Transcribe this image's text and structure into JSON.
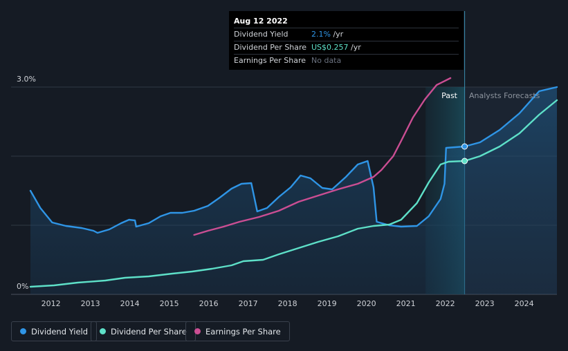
{
  "chart_data": {
    "type": "line",
    "title": "",
    "ylabel": "",
    "xlabel": "",
    "ylim": [
      0,
      3.0
    ],
    "y_tick_labels": [
      "3.0%",
      "0%"
    ],
    "x_tick_labels": [
      "2012",
      "2013",
      "2014",
      "2015",
      "2016",
      "2017",
      "2018",
      "2019",
      "2020",
      "2021",
      "2022",
      "2023",
      "2024"
    ],
    "regions": {
      "past_label": "Past",
      "forecast_label": "Analysts Forecasts",
      "divider_date": 2022.61,
      "shade_start": 2021.62
    },
    "series": [
      {
        "name": "Dividend Yield",
        "color": "#2f95e6",
        "fill": true,
        "points": [
          [
            2011.6,
            1.5
          ],
          [
            2011.85,
            1.25
          ],
          [
            2012.15,
            1.04
          ],
          [
            2012.5,
            0.99
          ],
          [
            2012.9,
            0.96
          ],
          [
            2013.2,
            0.92
          ],
          [
            2013.3,
            0.89
          ],
          [
            2013.6,
            0.94
          ],
          [
            2013.9,
            1.03
          ],
          [
            2014.1,
            1.08
          ],
          [
            2014.25,
            1.07
          ],
          [
            2014.28,
            0.98
          ],
          [
            2014.6,
            1.03
          ],
          [
            2014.9,
            1.13
          ],
          [
            2015.15,
            1.18
          ],
          [
            2015.45,
            1.18
          ],
          [
            2015.75,
            1.21
          ],
          [
            2016.1,
            1.28
          ],
          [
            2016.4,
            1.4
          ],
          [
            2016.7,
            1.53
          ],
          [
            2016.95,
            1.6
          ],
          [
            2017.2,
            1.61
          ],
          [
            2017.35,
            1.2
          ],
          [
            2017.6,
            1.25
          ],
          [
            2017.9,
            1.41
          ],
          [
            2018.2,
            1.55
          ],
          [
            2018.45,
            1.72
          ],
          [
            2018.7,
            1.68
          ],
          [
            2019.0,
            1.54
          ],
          [
            2019.25,
            1.52
          ],
          [
            2019.6,
            1.7
          ],
          [
            2019.9,
            1.88
          ],
          [
            2020.15,
            1.93
          ],
          [
            2020.3,
            1.55
          ],
          [
            2020.38,
            1.05
          ],
          [
            2020.7,
            1.0
          ],
          [
            2021.0,
            0.98
          ],
          [
            2021.4,
            0.99
          ],
          [
            2021.7,
            1.13
          ],
          [
            2022.0,
            1.38
          ],
          [
            2022.1,
            1.6
          ],
          [
            2022.14,
            2.12
          ],
          [
            2022.61,
            2.14
          ],
          [
            2023.0,
            2.2
          ],
          [
            2023.5,
            2.38
          ],
          [
            2024.0,
            2.62
          ],
          [
            2024.5,
            2.94
          ],
          [
            2024.95,
            3.0
          ]
        ]
      },
      {
        "name": "Dividend Per Share",
        "color": "#5ee0c8",
        "fill": false,
        "points": [
          [
            2011.6,
            0.11
          ],
          [
            2012.2,
            0.13
          ],
          [
            2012.8,
            0.17
          ],
          [
            2013.5,
            0.2
          ],
          [
            2014.0,
            0.24
          ],
          [
            2014.6,
            0.26
          ],
          [
            2015.2,
            0.3
          ],
          [
            2015.7,
            0.33
          ],
          [
            2016.2,
            0.37
          ],
          [
            2016.7,
            0.42
          ],
          [
            2017.0,
            0.48
          ],
          [
            2017.5,
            0.5
          ],
          [
            2017.9,
            0.58
          ],
          [
            2018.4,
            0.67
          ],
          [
            2018.9,
            0.76
          ],
          [
            2019.4,
            0.84
          ],
          [
            2019.9,
            0.95
          ],
          [
            2020.3,
            0.99
          ],
          [
            2020.7,
            1.01
          ],
          [
            2021.0,
            1.08
          ],
          [
            2021.4,
            1.32
          ],
          [
            2021.7,
            1.62
          ],
          [
            2022.0,
            1.88
          ],
          [
            2022.2,
            1.92
          ],
          [
            2022.61,
            1.93
          ],
          [
            2023.0,
            2.0
          ],
          [
            2023.5,
            2.14
          ],
          [
            2024.0,
            2.33
          ],
          [
            2024.5,
            2.6
          ],
          [
            2024.95,
            2.81
          ]
        ]
      },
      {
        "name": "Earnings Per Share",
        "color": "#cb4e93",
        "fill": false,
        "points": [
          [
            2015.75,
            0.86
          ],
          [
            2016.1,
            0.92
          ],
          [
            2016.5,
            0.98
          ],
          [
            2016.9,
            1.05
          ],
          [
            2017.4,
            1.12
          ],
          [
            2017.9,
            1.21
          ],
          [
            2018.4,
            1.34
          ],
          [
            2018.9,
            1.43
          ],
          [
            2019.4,
            1.52
          ],
          [
            2019.9,
            1.6
          ],
          [
            2020.3,
            1.7
          ],
          [
            2020.5,
            1.8
          ],
          [
            2020.8,
            2.0
          ],
          [
            2021.0,
            2.22
          ],
          [
            2021.3,
            2.56
          ],
          [
            2021.6,
            2.82
          ],
          [
            2021.9,
            3.03
          ],
          [
            2022.25,
            3.13
          ]
        ]
      }
    ],
    "highlight": {
      "x": 2022.61,
      "markers": [
        {
          "series": "Dividend Yield",
          "value": 2.14
        },
        {
          "series": "Dividend Per Share",
          "value": 1.93
        }
      ]
    },
    "legend": {
      "position": "bottom-left",
      "entries": [
        "Dividend Yield",
        "Dividend Per Share",
        "Earnings Per Share"
      ]
    }
  },
  "tooltip": {
    "date": "Aug 12 2022",
    "rows": [
      {
        "label": "Dividend Yield",
        "value": "2.1%",
        "unit": " /yr",
        "color": "#2f95e6"
      },
      {
        "label": "Dividend Per Share",
        "value": "US$0.257",
        "unit": " /yr",
        "color": "#5ee0c8"
      },
      {
        "label": "Earnings Per Share",
        "value": "No data",
        "unit": "",
        "color": "#6b7280"
      }
    ]
  },
  "colors": {
    "background": "#151b24",
    "grid": "#303844",
    "axis_text": "#d0d3d8",
    "forecast_label": "#8d949e",
    "shade": "#17424f"
  }
}
